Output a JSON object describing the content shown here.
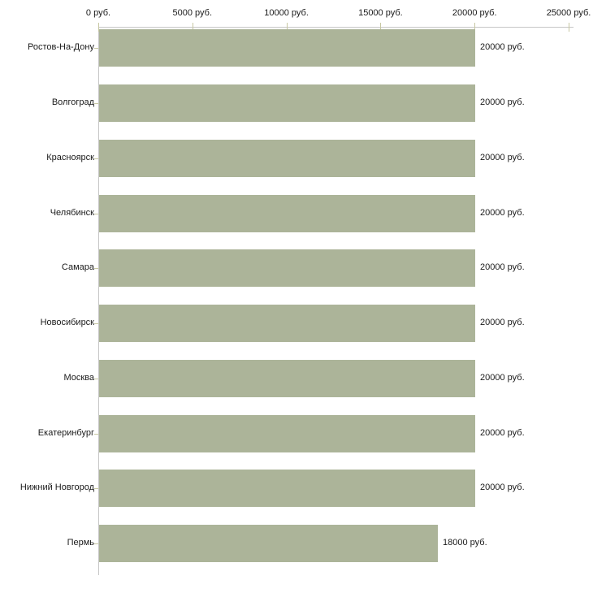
{
  "chart_data": {
    "type": "bar",
    "orientation": "horizontal",
    "title": "",
    "categories": [
      "Ростов-На-Дону",
      "Волгоград",
      "Красноярск",
      "Челябинск",
      "Самара",
      "Новосибирск",
      "Москва",
      "Екатеринбург",
      "Нижний Новгород",
      "Пермь"
    ],
    "values": [
      20000,
      20000,
      20000,
      20000,
      20000,
      20000,
      20000,
      20000,
      20000,
      18000
    ],
    "value_labels": [
      "20000 руб.",
      "20000 руб.",
      "20000 руб.",
      "20000 руб.",
      "20000 руб.",
      "20000 руб.",
      "20000 руб.",
      "20000 руб.",
      "20000 руб.",
      "18000 руб."
    ],
    "unit": "руб.",
    "x_ticks": [
      0,
      5000,
      10000,
      15000,
      20000,
      25000
    ],
    "x_tick_labels": [
      "0 руб.",
      "5000 руб.",
      "10000 руб.",
      "15000 руб.",
      "20000 руб.",
      "25000 руб."
    ],
    "xlim": [
      0,
      25000
    ],
    "axis_position": "top",
    "grid": false,
    "legend_position": "none",
    "colors": {
      "bar": "#acb499",
      "axis_line": "#c6c6c6",
      "tick": "#c7c7a2",
      "text": "#1a1a1a",
      "background": "#ffffff"
    }
  }
}
